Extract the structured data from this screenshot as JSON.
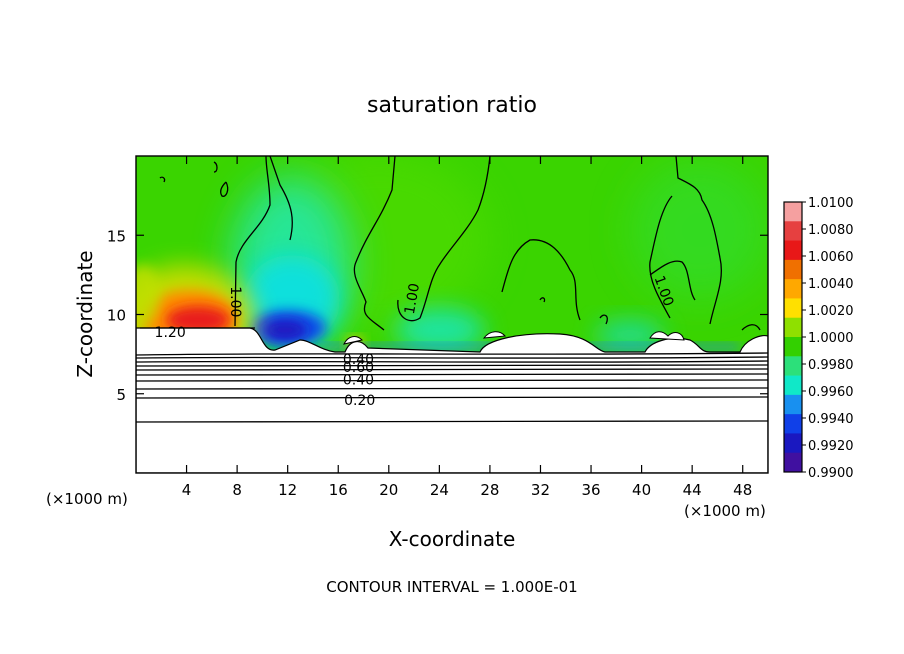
{
  "chart_data": {
    "type": "heatmap",
    "title": "saturation ratio",
    "xlabel": "X-coordinate",
    "ylabel": "Z-coordinate",
    "x_unit": "(×1000 m)",
    "x_unit_right": "(×1000 m)",
    "footer": "CONTOUR INTERVAL = 1.000E-01",
    "xlim": [
      0,
      50
    ],
    "ylim": [
      0,
      20
    ],
    "xticks": [
      4,
      8,
      12,
      16,
      20,
      24,
      28,
      32,
      36,
      40,
      44,
      48
    ],
    "yticks": [
      5,
      10,
      15
    ],
    "colorbar": {
      "min": 0.99,
      "max": 1.01,
      "ticks": [
        "1.0100",
        "1.0080",
        "1.0060",
        "1.0040",
        "1.0020",
        "1.0000",
        "0.9980",
        "0.9960",
        "0.9940",
        "0.9920",
        "0.9900"
      ],
      "colors": [
        "#f5a0a0",
        "#e64040",
        "#e81818",
        "#f07000",
        "#ffa800",
        "#ffe000",
        "#8fe000",
        "#33d000",
        "#2ce07a",
        "#10e8c8",
        "#1890f0",
        "#1040e8",
        "#1a18c0",
        "#4010a0"
      ]
    },
    "contour_labels": [
      {
        "text": "1.20",
        "x": 2.7,
        "y": 8.9
      },
      {
        "text": "1.00",
        "x": 7.9,
        "y": 10.8,
        "rotate": 90
      },
      {
        "text": "1.00",
        "x": 21.8,
        "y": 11.0,
        "rotate": -80
      },
      {
        "text": "1.00",
        "x": 41.8,
        "y": 11.5,
        "rotate": 70
      },
      {
        "text": "0.40",
        "x": 17.6,
        "y": 7.2
      },
      {
        "text": "0.60",
        "x": 17.6,
        "y": 6.7
      },
      {
        "text": "0.40",
        "x": 17.6,
        "y": 5.9
      },
      {
        "text": "0.20",
        "x": 17.7,
        "y": 4.6
      }
    ],
    "field_features": [
      {
        "name": "supersaturated maximum",
        "x_center": 5.2,
        "z_center": 9.8,
        "value": 1.0065
      },
      {
        "name": "subsaturated minimum",
        "x_center": 12.0,
        "z_center": 9.6,
        "value": 0.9915
      },
      {
        "name": "background",
        "value": 1.0005
      }
    ]
  }
}
